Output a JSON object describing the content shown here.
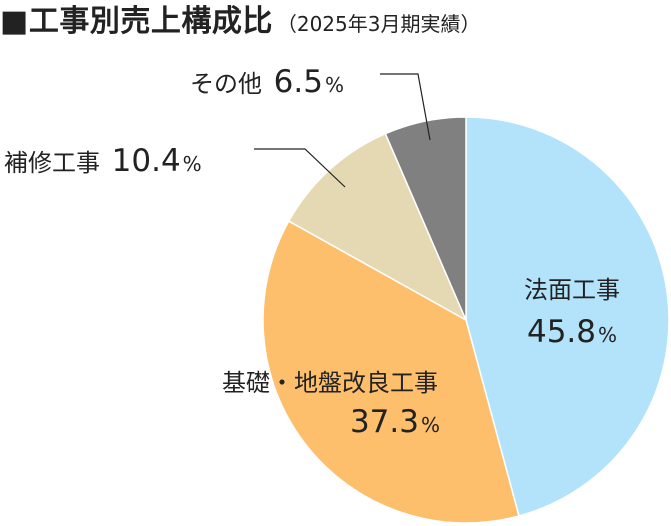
{
  "chart_data": {
    "type": "pie",
    "title": "■工事別売上構成比",
    "subtitle": "（2025年3月期実績）",
    "unit": "%",
    "slices": [
      {
        "label": "法面工事",
        "value": 45.8,
        "color": "#b3e3fb"
      },
      {
        "label": "基礎・地盤改良工事",
        "value": 37.3,
        "color": "#fdbf6c"
      },
      {
        "label": "補修工事",
        "value": 10.4,
        "color": "#e5d9b4"
      },
      {
        "label": "その他",
        "value": 6.5,
        "color": "#808080"
      }
    ],
    "start_angle": "12 o'clock",
    "direction": "clockwise",
    "label_placement": [
      "inside",
      "inside",
      "outside-left",
      "outside-left"
    ]
  }
}
